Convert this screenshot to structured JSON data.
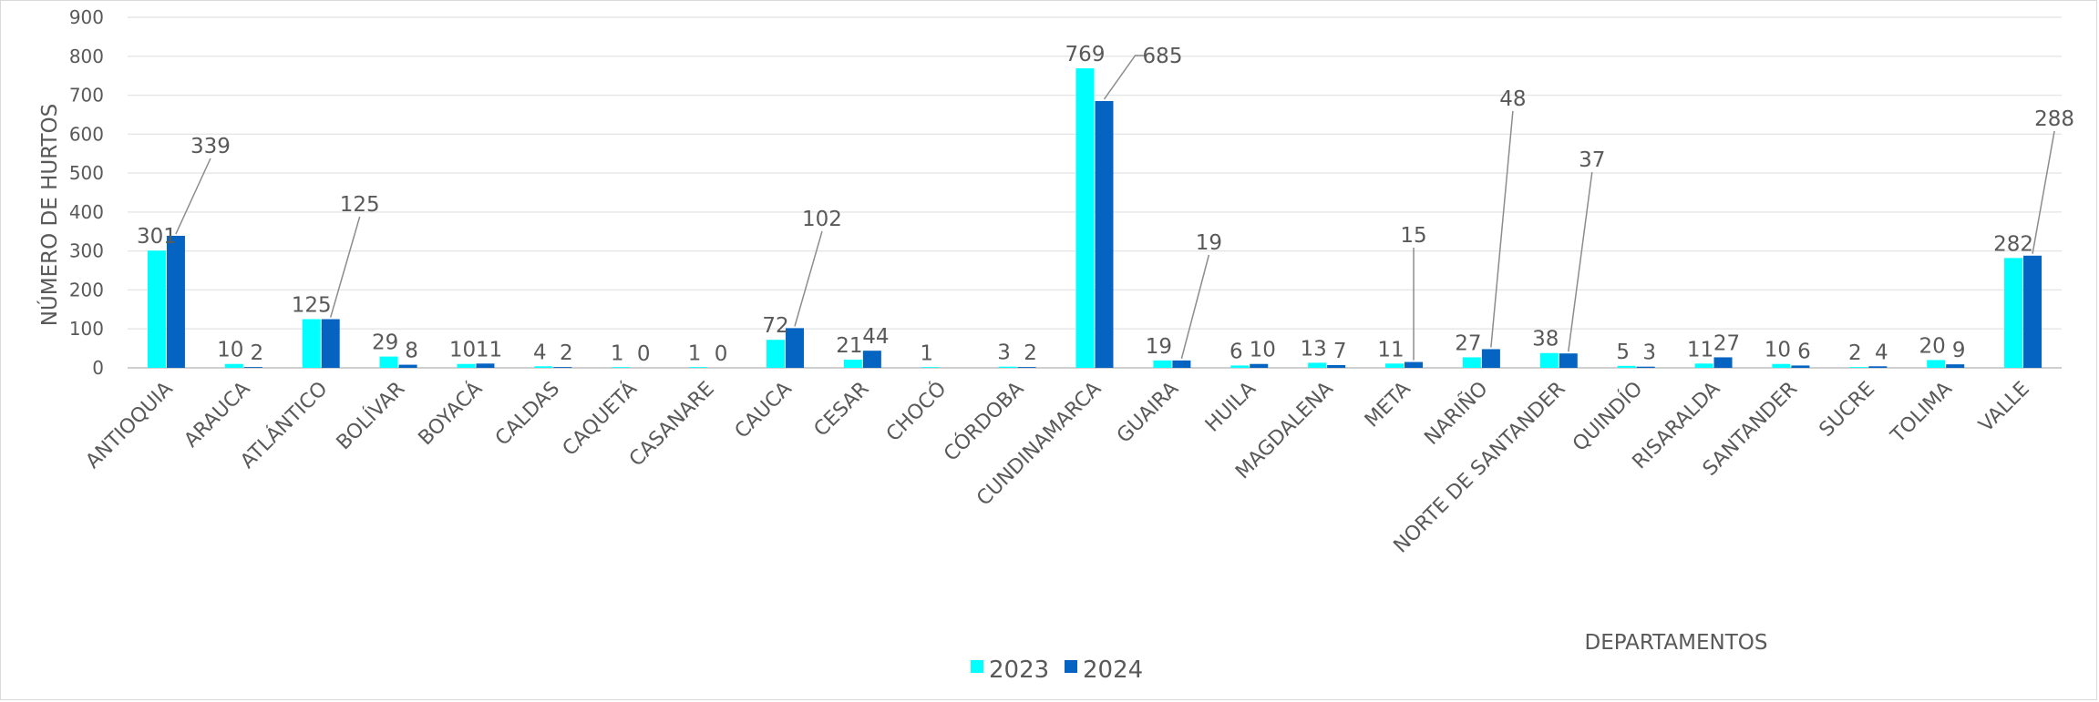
{
  "chart_data": {
    "type": "bar",
    "title": "",
    "xlabel": "DEPARTAMENTOS",
    "ylabel": "NÚMERO DE HURTOS",
    "ylim": [
      0,
      900
    ],
    "yticks": [
      "0",
      "100",
      "200",
      "300",
      "400",
      "500",
      "600",
      "700",
      "800",
      "900"
    ],
    "grid": true,
    "legend_position": "bottom",
    "categories": [
      "ANTIOQUIA",
      "ARAUCA",
      "ATLÁNTICO",
      "BOLÍVAR",
      "BOYACÁ",
      "CALDAS",
      "CAQUETÁ",
      "CASANARE",
      "CAUCA",
      "CESAR",
      "CHOCÓ",
      "CÓRDOBA",
      "CUNDINAMARCA",
      "GUAIRA",
      "HUILA",
      "MAGDALENA",
      "META",
      "NARIÑO",
      "NORTE DE SANTANDER",
      "QUINDÍO",
      "RISARALDA",
      "SANTANDER",
      "SUCRE",
      "TOLIMA",
      "VALLE"
    ],
    "series": [
      {
        "name": "2023",
        "color": "#00FFFF",
        "values": [
          301,
          10,
          125,
          29,
          10,
          4,
          1,
          1,
          72,
          21,
          1,
          3,
          769,
          19,
          6,
          13,
          11,
          27,
          38,
          5,
          11,
          10,
          2,
          20,
          282
        ],
        "labels": [
          "301",
          "10",
          "125",
          "29",
          "10",
          "4",
          "1",
          "1",
          "72",
          "21",
          "1",
          "3",
          "769",
          "19",
          "6",
          "13",
          "11",
          "27",
          "38",
          "5",
          "11",
          "10",
          "2",
          "20",
          "282"
        ]
      },
      {
        "name": "2024",
        "color": "#0563C1",
        "values": [
          339,
          2,
          125,
          8,
          11,
          2,
          0,
          0,
          102,
          44,
          null,
          2,
          685,
          19,
          10,
          7,
          15,
          48,
          37,
          3,
          27,
          6,
          4,
          9,
          288
        ],
        "labels": [
          "339",
          "2",
          "125",
          "8",
          "11",
          "2",
          "0",
          "0",
          "102",
          "44",
          "",
          "2",
          "685",
          "19",
          "10",
          "7",
          "15",
          "48",
          "37",
          "3",
          "27",
          "6",
          "4",
          "9",
          "288"
        ]
      }
    ]
  }
}
